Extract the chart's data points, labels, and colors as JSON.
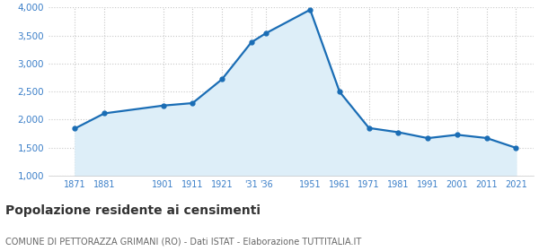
{
  "years": [
    1871,
    1881,
    1901,
    1911,
    1921,
    1931,
    1936,
    1951,
    1961,
    1971,
    1981,
    1991,
    2001,
    2011,
    2021
  ],
  "population": [
    1843,
    2112,
    2251,
    2295,
    2720,
    3380,
    3543,
    3961,
    2498,
    1851,
    1775,
    1670,
    1730,
    1672,
    1497
  ],
  "line_color": "#1a6db5",
  "fill_color": "#ddeef8",
  "marker_color": "#1a6db5",
  "grid_color": "#c8c8c8",
  "background_color": "#ffffff",
  "title": "Popolazione residente ai censimenti",
  "subtitle": "COMUNE DI PETTORAZZA GRIMANI (RO) - Dati ISTAT - Elaborazione TUTTITALIA.IT",
  "ylim": [
    1000,
    4000
  ],
  "yticks": [
    1000,
    1500,
    2000,
    2500,
    3000,
    3500,
    4000
  ],
  "xtick_positions": [
    1871,
    1881,
    1901,
    1911,
    1921,
    1931,
    1936,
    1951,
    1961,
    1971,
    1981,
    1991,
    2001,
    2011,
    2021
  ],
  "xtick_labels": [
    "1871",
    "1881",
    "1901",
    "1911",
    "1921",
    "'31",
    "'36",
    "1951",
    "1961",
    "1971",
    "1981",
    "1991",
    "2001",
    "2011",
    "2021"
  ],
  "xlim": [
    1862,
    2027
  ],
  "title_fontsize": 10,
  "subtitle_fontsize": 7,
  "tick_color": "#3a7ec8",
  "title_color": "#333333",
  "subtitle_color": "#666666"
}
